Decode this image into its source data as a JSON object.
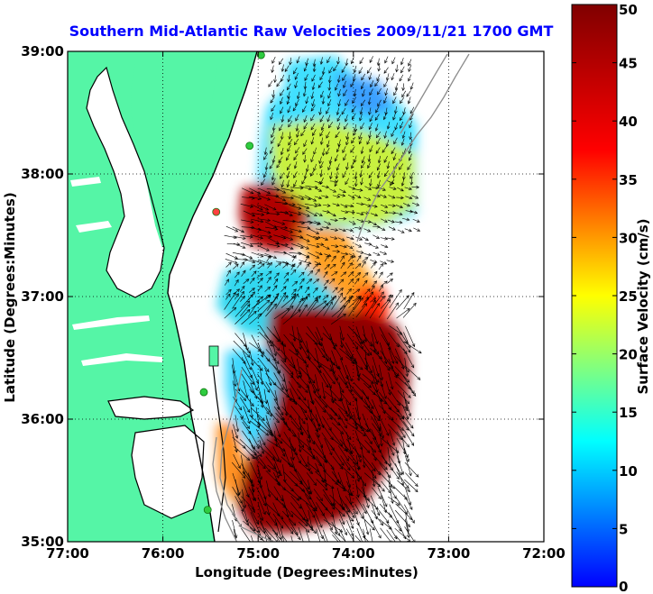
{
  "title": "Southern Mid-Atlantic Raw Velocities 2009/11/21 1700 GMT",
  "colors": {
    "title": "#0000ff",
    "land": "#55f5a6",
    "water": "#ffffff",
    "coast_outline": "#000000",
    "bathymetry": "#8c8c8c",
    "station_marker": "#2ecc40",
    "station_marker_alert": "#ff4040",
    "arrow": "#000000"
  },
  "map": {
    "xlabel": "Longitude (Degrees:Minutes)",
    "ylabel": "Latitude (Degrees:Minutes)",
    "lon_range": [
      -77,
      -72
    ],
    "lat_range": [
      35,
      39
    ],
    "x_ticks": [
      {
        "lon": -77,
        "label": "77:00"
      },
      {
        "lon": -76,
        "label": "76:00"
      },
      {
        "lon": -75,
        "label": "75:00"
      },
      {
        "lon": -74,
        "label": "74:00"
      },
      {
        "lon": -73,
        "label": "73:00"
      },
      {
        "lon": -72,
        "label": "72:00"
      }
    ],
    "y_ticks": [
      {
        "lat": 35,
        "label": "35:00"
      },
      {
        "lat": 36,
        "label": "36:00"
      },
      {
        "lat": 37,
        "label": "37:00"
      },
      {
        "lat": 38,
        "label": "38:00"
      },
      {
        "lat": 39,
        "label": "39:00"
      }
    ],
    "grid": "dotted"
  },
  "colorbar": {
    "label": "Surface Velocity (cm/s)",
    "min": 0,
    "max": 50,
    "ticks": [
      {
        "value": 0,
        "label": "0"
      },
      {
        "value": 5,
        "label": "5"
      },
      {
        "value": 10,
        "label": "10"
      },
      {
        "value": 15,
        "label": "15"
      },
      {
        "value": 20,
        "label": "20"
      },
      {
        "value": 25,
        "label": "25"
      },
      {
        "value": 30,
        "label": "30"
      },
      {
        "value": 35,
        "label": "35"
      },
      {
        "value": 40,
        "label": "40"
      },
      {
        "value": 45,
        "label": "45"
      },
      {
        "value": 50,
        "label": "50"
      }
    ],
    "colormap": "jet"
  },
  "stations": [
    {
      "lon": -74.97,
      "lat": 38.97,
      "status": "ok"
    },
    {
      "lon": -75.09,
      "lat": 38.23,
      "status": "ok"
    },
    {
      "lon": -75.44,
      "lat": 37.69,
      "status": "alert"
    },
    {
      "lon": -75.57,
      "lat": 36.22,
      "status": "ok"
    },
    {
      "lon": -75.53,
      "lat": 35.26,
      "status": "ok"
    }
  ],
  "chart_data": {
    "type": "heatmap",
    "title": "Southern Mid-Atlantic Raw Velocities 2009/11/21 1700 GMT",
    "xlabel": "Longitude (Degrees:Minutes)",
    "ylabel": "Latitude (Degrees:Minutes)",
    "xlim": [
      -77,
      -72
    ],
    "ylim": [
      35,
      39
    ],
    "color_scale": {
      "label": "Surface Velocity (cm/s)",
      "range": [
        0,
        50
      ],
      "colormap": "jet"
    },
    "speed_regions": [
      {
        "region": "northern shelf near 38:30N 74:30W",
        "speed_cm_s": 12
      },
      {
        "region": "offshore band near 38:00N 74:20W",
        "speed_cm_s": 22
      },
      {
        "region": "strong jet near 37:40N 75:00W",
        "speed_cm_s": 48
      },
      {
        "region": "band near 37:20N 74:20W",
        "speed_cm_s": 30
      },
      {
        "region": "off Virginia near 37:00N 74:50W",
        "speed_cm_s": 14
      },
      {
        "region": "southern core 35:00-36:40N 74:30W",
        "speed_cm_s": 50
      },
      {
        "region": "nearshore near 36:00N 75:10W",
        "speed_cm_s": 13
      }
    ],
    "vectors": "black surface current arrows on the radar grid"
  }
}
